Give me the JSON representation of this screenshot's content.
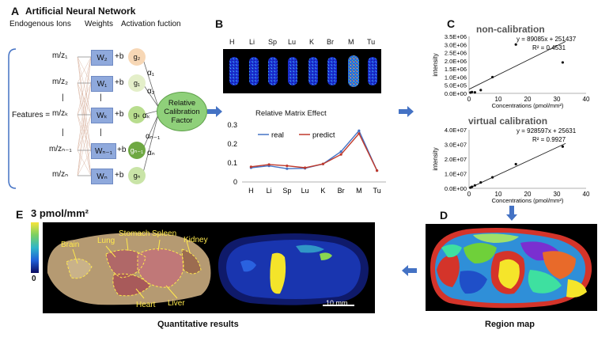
{
  "panels": {
    "a": {
      "letter": "A",
      "title": "Artificial Neural Network",
      "col_ions": "Endogenous Ions",
      "col_weights": "Weights",
      "col_activation": "Activation fuction",
      "features_label": "Features =",
      "mz": [
        "m/z₁",
        "m/z₂",
        "m/zₖ",
        "m/zₙ₋₁",
        "m/zₙ"
      ],
      "weights": [
        "W₂",
        "W₁",
        "Wₖ",
        "Wₙ₋₁",
        "Wₙ"
      ],
      "bias": [
        "+b",
        "+b",
        "+b",
        "+b",
        "+b"
      ],
      "activations": [
        "g₂",
        "g₁",
        "gₖ",
        "gₙ₋₁",
        "gₙ"
      ],
      "alphas": [
        "α₁",
        "α₂",
        "αₖ",
        "αₙ₋₁",
        "αₙ"
      ],
      "ellipsis": [
        "|",
        "|",
        "|",
        "|"
      ],
      "output_node": [
        "Relative",
        "Calibration",
        "Factor"
      ]
    },
    "b": {
      "letter": "B",
      "organs": [
        "H",
        "Li",
        "Sp",
        "Lu",
        "K",
        "Br",
        "M",
        "Tu"
      ],
      "chart_title": "Relative Matrix Effect",
      "legend": [
        "real",
        "predict"
      ]
    },
    "c": {
      "letter": "C",
      "top_title": "non-calibration",
      "top_eq": "y = 89085x + 251437",
      "top_r2": "R² = 0.4531",
      "bottom_title": "virtual calibration",
      "bottom_eq": "y = 928597x + 25631",
      "bottom_r2": "R² = 0.9927",
      "ylabel": "intensity",
      "xlabel": "Concentrations (pmol/mm²)",
      "top_yticks": [
        "3.5E+06",
        "3.0E+06",
        "2.5E+06",
        "2.0E+06",
        "1.5E+06",
        "1.0E+06",
        "5.0E+05",
        "0.0E+00"
      ],
      "bottom_yticks": [
        "4.0E+07",
        "3.0E+07",
        "2.0E+07",
        "1.0E+07",
        "0.0E+00"
      ],
      "xticks": [
        "0",
        "10",
        "20",
        "30",
        "40"
      ]
    },
    "d": {
      "letter": "D",
      "caption": "Region map"
    },
    "e": {
      "letter": "E",
      "colorbar_max": "3 pmol/mm²",
      "colorbar_min": "0",
      "organ_labels": [
        "Brain",
        "Lung",
        "Stomach",
        "Spleen",
        "Kidney",
        "Heart",
        "Liver"
      ],
      "scale_bar": "10 mm",
      "caption": "Quantitative results"
    }
  },
  "colors": {
    "arrow": "#4472c4",
    "real": "#4472c4",
    "predict": "#c0392b",
    "weight_box": "#8fa9dc",
    "output_node": "#8fd07a"
  },
  "chart_data": [
    {
      "type": "line",
      "title": "Relative Matrix Effect",
      "categories": [
        "H",
        "Li",
        "Sp",
        "Lu",
        "K",
        "Br",
        "M",
        "Tu"
      ],
      "series": [
        {
          "name": "real",
          "values": [
            0.075,
            0.085,
            0.07,
            0.072,
            0.095,
            0.16,
            0.27,
            0.06
          ]
        },
        {
          "name": "predict",
          "values": [
            0.08,
            0.092,
            0.085,
            0.075,
            0.095,
            0.145,
            0.255,
            0.06
          ]
        }
      ],
      "yticks": [
        0,
        0.1,
        0.2,
        0.3
      ],
      "ylim": [
        0,
        0.3
      ],
      "legend_position": "top-left"
    },
    {
      "type": "scatter",
      "title": "non-calibration",
      "x": [
        0.5,
        1,
        2,
        4,
        8,
        16,
        32
      ],
      "y": [
        50000,
        80000,
        60000,
        200000,
        1000000,
        3000000,
        1900000
      ],
      "trendline": {
        "slope": 89085,
        "intercept": 251437
      },
      "xlim": [
        0,
        40
      ],
      "ylim": [
        0,
        3500000
      ],
      "xlabel": "Concentrations (pmol/mm²)",
      "ylabel": "intensity"
    },
    {
      "type": "scatter",
      "title": "virtual calibration",
      "x": [
        0.5,
        1,
        2,
        4,
        8,
        16,
        32
      ],
      "y": [
        500000,
        1000000,
        2000000,
        4000000,
        7500000,
        16500000,
        28500000
      ],
      "trendline": {
        "slope": 928597,
        "intercept": 25631
      },
      "xlim": [
        0,
        40
      ],
      "ylim": [
        0,
        40000000
      ],
      "xlabel": "Concentrations (pmol/mm²)",
      "ylabel": "intensity"
    }
  ]
}
